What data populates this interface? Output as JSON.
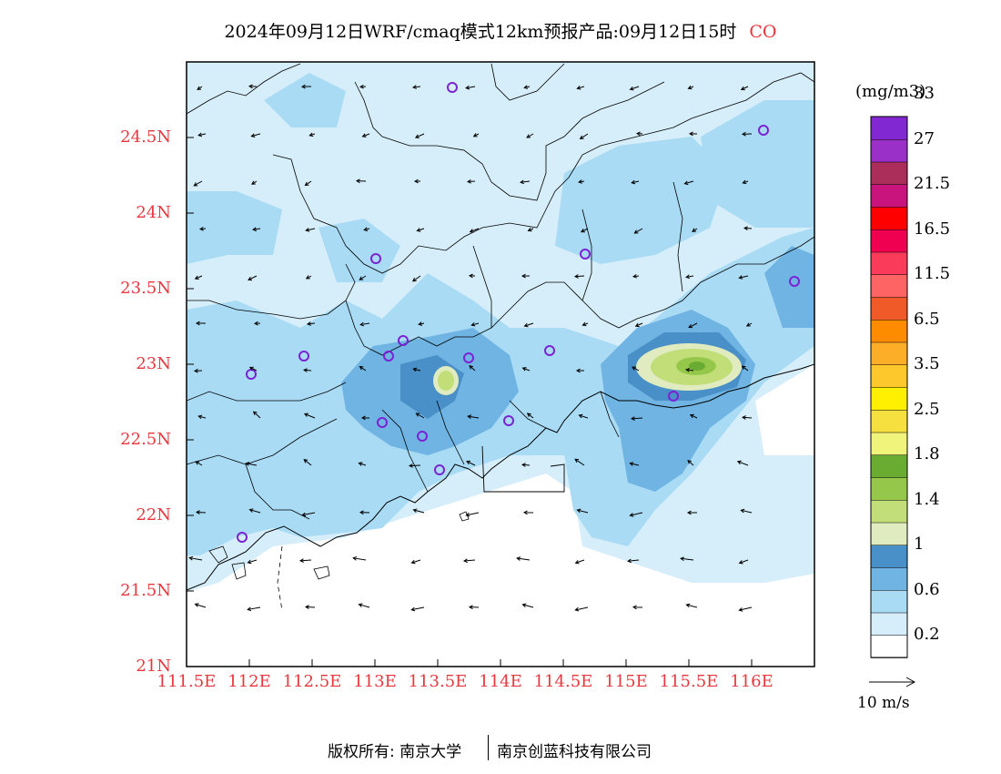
{
  "title": {
    "main": "2024年09月12日WRF/cmaq模式12km预报产品:09月12日15时",
    "species": "CO"
  },
  "map": {
    "lon_range": [
      111.5,
      116.5
    ],
    "lat_range": [
      21.0,
      25.0
    ],
    "lat_ticks": [
      "24.5N",
      "24N",
      "23.5N",
      "23N",
      "22.5N",
      "22N",
      "21.5N",
      "21N"
    ],
    "lon_ticks": [
      "111.5E",
      "112E",
      "112.5E",
      "113E",
      "113.5E",
      "114E",
      "114.5E",
      "115E",
      "115.5E",
      "116E"
    ],
    "colors": {
      "axis_label": "#e8383d",
      "station_marker": "#7b22d4"
    }
  },
  "colorbar": {
    "unit": "(mg/m3)",
    "colors": [
      "#ffffff",
      "#d6eefa",
      "#a9dbf5",
      "#6fb4e2",
      "#4a90c8",
      "#e0ecc0",
      "#c2de78",
      "#95c84a",
      "#6aac32",
      "#f0f47a",
      "#f5e040",
      "#ffef00",
      "#fcc82c",
      "#fdae28",
      "#ff8c00",
      "#ef5a28",
      "#ff6464",
      "#fa3c5a",
      "#f00050",
      "#ff0000",
      "#c8147c",
      "#aa2d5a",
      "#9b30c8",
      "#8228d2"
    ],
    "labels": [
      "0.2",
      "0.6",
      "1",
      "1.4",
      "1.8",
      "2.5",
      "3.5",
      "6.5",
      "11.5",
      "16.5",
      "21.5",
      "27",
      "33"
    ]
  },
  "vector_reference": {
    "label": "10 m/s"
  },
  "copyright": {
    "left": "版权所有: 南京大学",
    "right": "南京创蓝科技有限公司"
  }
}
